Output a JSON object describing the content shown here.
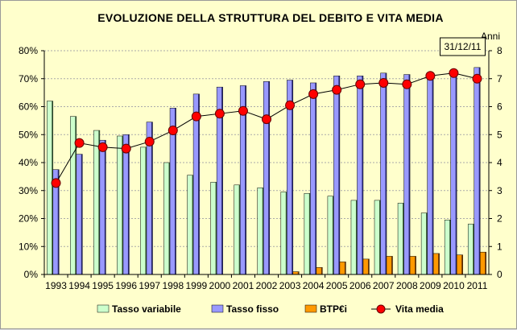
{
  "chart_data": {
    "type": "bar",
    "title": "EVOLUZIONE  DELLA STRUTTURA DEL DEBITO  E  VITA  MEDIA",
    "categories": [
      "1993",
      "1994",
      "1995",
      "1996",
      "1997",
      "1998",
      "1999",
      "2000",
      "2001",
      "2002",
      "2003",
      "2004",
      "2005",
      "2006",
      "2007",
      "2008",
      "2009",
      "2010",
      "2011"
    ],
    "y_left": {
      "range": [
        0,
        80
      ],
      "ticks": [
        "0%",
        "10%",
        "20%",
        "30%",
        "40%",
        "50%",
        "60%",
        "70%",
        "80%"
      ]
    },
    "y_right": {
      "label": "Anni",
      "range": [
        0,
        8
      ],
      "ticks": [
        "0",
        "1",
        "2",
        "3",
        "4",
        "5",
        "6",
        "7",
        "8"
      ]
    },
    "series": [
      {
        "name": "Tasso variabile",
        "kind": "bar",
        "axis": "left",
        "color": "#ccffcc",
        "values": [
          62,
          56.5,
          51.5,
          49.5,
          45.5,
          40,
          35.5,
          33,
          32,
          31,
          29.5,
          29,
          28,
          26.5,
          26.5,
          25.5,
          22,
          19.5,
          18
        ]
      },
      {
        "name": "Tasso fisso",
        "kind": "bar",
        "axis": "left",
        "color": "#9999ff",
        "values": [
          37.5,
          43,
          48,
          50,
          54.5,
          59.5,
          64.5,
          67,
          67.5,
          69,
          69.5,
          68.5,
          71,
          71,
          72,
          71.5,
          71.5,
          72,
          74
        ]
      },
      {
        "name": "BTP€i",
        "kind": "bar",
        "axis": "left",
        "color": "#ff9900",
        "values": [
          0,
          0,
          0,
          0,
          0,
          0,
          0,
          0,
          0,
          0,
          1,
          2.5,
          4.5,
          5.5,
          6.5,
          6.5,
          7.5,
          7,
          8
        ]
      },
      {
        "name": "Vita media",
        "kind": "line",
        "axis": "right",
        "color": "#ff0000",
        "values": [
          3.27,
          4.7,
          4.55,
          4.5,
          4.75,
          5.15,
          5.65,
          5.75,
          5.85,
          5.55,
          6.05,
          6.45,
          6.6,
          6.8,
          6.85,
          6.8,
          7.1,
          7.2,
          7.0
        ]
      }
    ],
    "annotation": "31/12/11",
    "grid": true,
    "legend": "bottom"
  }
}
